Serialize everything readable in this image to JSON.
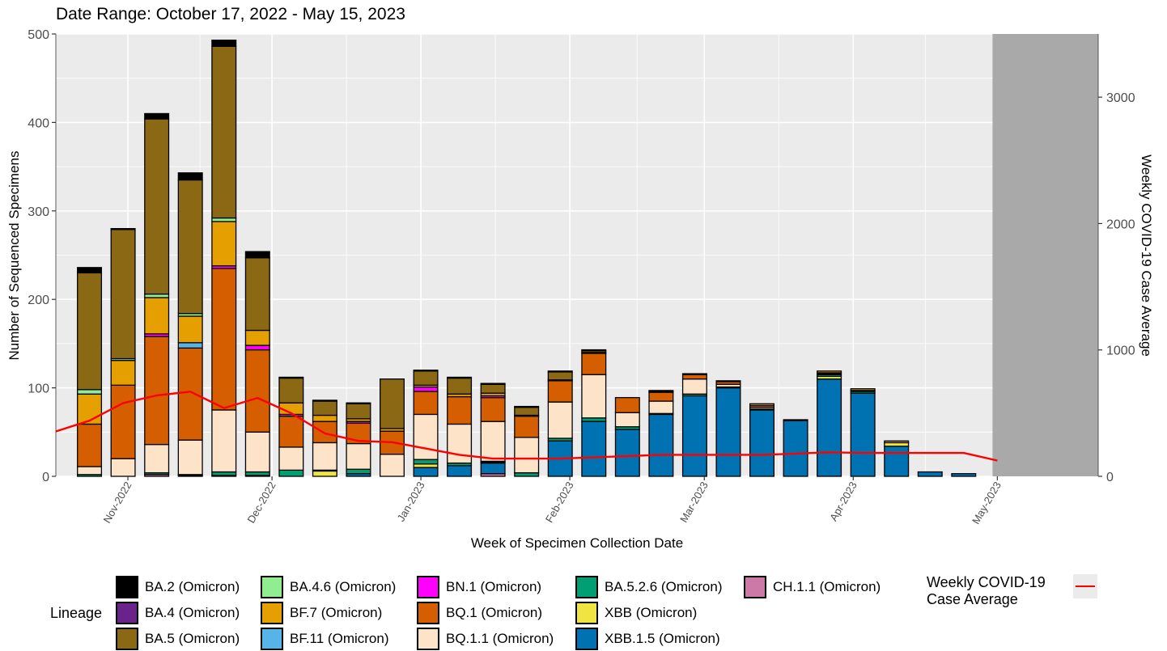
{
  "chart_data": {
    "type": "bar",
    "title": "Date Range: October 17, 2022 - May 15, 2023",
    "xlabel": "Week of Specimen Collection Date",
    "ylabel": "Number of Sequenced Specimens",
    "y2label": "Weekly COVID-19 Case Average",
    "ylim": [
      0,
      500
    ],
    "y2lim": [
      0,
      3500
    ],
    "yticks": [
      0,
      100,
      200,
      300,
      400,
      500
    ],
    "y2ticks": [
      0,
      1000,
      2000,
      3000
    ],
    "grid": true,
    "stacked": true,
    "legend_title": "Lineage",
    "legend_position": "bottom",
    "xlim": [
      "2022-10-17",
      "2023-05-22"
    ],
    "x_tick_labels": [
      "Nov-2022",
      "Dec-2022",
      "Jan-2023",
      "Feb-2023",
      "Mar-2023",
      "Apr-2023",
      "May-2023"
    ],
    "x_tick_dates": [
      "2022-11-01",
      "2022-12-01",
      "2023-01-01",
      "2023-02-01",
      "2023-03-01",
      "2023-04-01",
      "2023-05-01"
    ],
    "shaded_region": {
      "start": "2023-04-30",
      "end": "2023-05-22",
      "color": "#a6a6a6"
    },
    "weeks": [
      "2022-10-24",
      "2022-10-31",
      "2022-11-07",
      "2022-11-14",
      "2022-11-21",
      "2022-11-28",
      "2022-12-05",
      "2022-12-12",
      "2022-12-19",
      "2022-12-26",
      "2023-01-02",
      "2023-01-09",
      "2023-01-16",
      "2023-01-23",
      "2023-01-30",
      "2023-02-06",
      "2023-02-13",
      "2023-02-20",
      "2023-02-27",
      "2023-03-06",
      "2023-03-13",
      "2023-03-20",
      "2023-03-27",
      "2023-04-03",
      "2023-04-10",
      "2023-04-17",
      "2023-04-24"
    ],
    "series": [
      {
        "name": "CH.1.1 (Omicron)",
        "color": "#cc79a7",
        "values": [
          0,
          0,
          2,
          1,
          1,
          1,
          0,
          0,
          0,
          0,
          0,
          0,
          3,
          0,
          0,
          0,
          0,
          0,
          0,
          0,
          0,
          0,
          0,
          0,
          0,
          0,
          0
        ]
      },
      {
        "name": "XBB.1.5 (Omicron)",
        "color": "#0072b2",
        "values": [
          0,
          0,
          0,
          0,
          0,
          0,
          0,
          0,
          3,
          0,
          10,
          12,
          12,
          0,
          40,
          62,
          53,
          70,
          91,
          100,
          75,
          63,
          110,
          94,
          34,
          5,
          3
        ]
      },
      {
        "name": "XBB (Omicron)",
        "color": "#f0e442",
        "values": [
          0,
          0,
          0,
          0,
          0,
          0,
          0,
          6,
          0,
          0,
          4,
          0,
          1,
          0,
          0,
          0,
          0,
          0,
          0,
          0,
          0,
          0,
          3,
          0,
          4,
          0,
          0
        ]
      },
      {
        "name": "BA.5.2.6 (Omicron)",
        "color": "#009e73",
        "values": [
          2,
          0,
          2,
          1,
          4,
          4,
          7,
          1,
          5,
          0,
          5,
          3,
          1,
          4,
          3,
          4,
          3,
          1,
          2,
          1,
          1,
          1,
          2,
          2,
          0,
          0,
          0
        ]
      },
      {
        "name": "BQ.1.1 (Omicron)",
        "color": "#fde3c8",
        "values": [
          9,
          20,
          32,
          39,
          70,
          45,
          26,
          31,
          29,
          25,
          51,
          44,
          45,
          40,
          41,
          49,
          16,
          14,
          17,
          3,
          2,
          0,
          1,
          0,
          0,
          0,
          0
        ]
      },
      {
        "name": "BQ.1 (Omicron)",
        "color": "#d55e00",
        "values": [
          48,
          83,
          122,
          104,
          160,
          93,
          35,
          24,
          23,
          26,
          26,
          31,
          27,
          24,
          24,
          24,
          17,
          10,
          5,
          3,
          2,
          0,
          1,
          1,
          0,
          0,
          0
        ]
      },
      {
        "name": "BN.1 (Omicron)",
        "color": "#ff00ff",
        "values": [
          0,
          0,
          3,
          0,
          3,
          5,
          2,
          0,
          2,
          0,
          5,
          0,
          2,
          0,
          0,
          0,
          0,
          0,
          0,
          0,
          0,
          0,
          0,
          0,
          0,
          0,
          0
        ]
      },
      {
        "name": "BF.11 (Omicron)",
        "color": "#56b4e9",
        "values": [
          0,
          0,
          0,
          6,
          0,
          0,
          0,
          0,
          0,
          0,
          0,
          0,
          0,
          0,
          0,
          0,
          0,
          0,
          0,
          0,
          0,
          0,
          0,
          0,
          0,
          0,
          0
        ]
      },
      {
        "name": "BF.7 (Omicron)",
        "color": "#e69f00",
        "values": [
          34,
          28,
          41,
          30,
          50,
          17,
          13,
          7,
          3,
          3,
          2,
          3,
          3,
          1,
          1,
          1,
          0,
          1,
          1,
          1,
          2,
          0,
          2,
          2,
          2,
          0,
          0
        ]
      },
      {
        "name": "BA.4.6 (Omicron)",
        "color": "#90ee90",
        "values": [
          5,
          2,
          4,
          3,
          4,
          0,
          0,
          0,
          0,
          0,
          0,
          0,
          0,
          0,
          0,
          0,
          0,
          0,
          0,
          0,
          0,
          0,
          0,
          0,
          0,
          0,
          0
        ]
      },
      {
        "name": "BA.5 (Omicron)",
        "color": "#8b6914",
        "values": [
          132,
          146,
          198,
          151,
          194,
          82,
          28,
          16,
          17,
          56,
          16,
          18,
          10,
          9,
          9,
          2,
          0,
          1,
          0,
          0,
          0,
          0,
          0,
          0,
          0,
          0,
          0
        ]
      },
      {
        "name": "BA.4 (Omicron)",
        "color": "#6a238b",
        "values": [
          0,
          0,
          0,
          0,
          0,
          0,
          0,
          0,
          0,
          0,
          0,
          0,
          0,
          0,
          0,
          0,
          0,
          0,
          0,
          0,
          0,
          0,
          0,
          0,
          0,
          0,
          0
        ]
      },
      {
        "name": "BA.2 (Omicron)",
        "color": "#000000",
        "values": [
          6,
          1,
          6,
          8,
          7,
          7,
          1,
          1,
          1,
          0,
          1,
          1,
          1,
          1,
          1,
          1,
          0,
          0,
          0,
          0,
          0,
          0,
          0,
          0,
          0,
          0,
          0
        ]
      }
    ],
    "line": {
      "name": "Weekly COVID-19 Case Average",
      "color": "#ff0000",
      "axis": "y2",
      "x": [
        "2022-10-17",
        "2022-10-24",
        "2022-10-31",
        "2022-11-07",
        "2022-11-14",
        "2022-11-21",
        "2022-11-28",
        "2022-12-05",
        "2022-12-12",
        "2022-12-19",
        "2022-12-26",
        "2023-01-02",
        "2023-01-09",
        "2023-01-16",
        "2023-01-23",
        "2023-01-30",
        "2023-02-06",
        "2023-02-13",
        "2023-02-20",
        "2023-02-27",
        "2023-03-06",
        "2023-03-13",
        "2023-03-20",
        "2023-03-27",
        "2023-04-03",
        "2023-04-10",
        "2023-04-17",
        "2023-04-24",
        "2023-05-01"
      ],
      "y": [
        355,
        440,
        580,
        640,
        670,
        540,
        620,
        500,
        340,
        280,
        270,
        220,
        170,
        140,
        140,
        140,
        150,
        160,
        170,
        170,
        170,
        170,
        180,
        190,
        185,
        185,
        185,
        185,
        125
      ]
    }
  },
  "legend": {
    "title": "Lineage",
    "columns": [
      [
        "BA.2 (Omicron)",
        "BA.4 (Omicron)",
        "BA.5 (Omicron)"
      ],
      [
        "BA.4.6 (Omicron)",
        "BF.7 (Omicron)",
        "BF.11 (Omicron)"
      ],
      [
        "BN.1 (Omicron)",
        "BQ.1 (Omicron)",
        "BQ.1.1 (Omicron)"
      ],
      [
        "BA.5.2.6 (Omicron)",
        "XBB (Omicron)",
        "XBB.1.5 (Omicron)"
      ],
      [
        "CH.1.1 (Omicron)"
      ]
    ],
    "line_label": "Weekly COVID-19 Case Average"
  }
}
